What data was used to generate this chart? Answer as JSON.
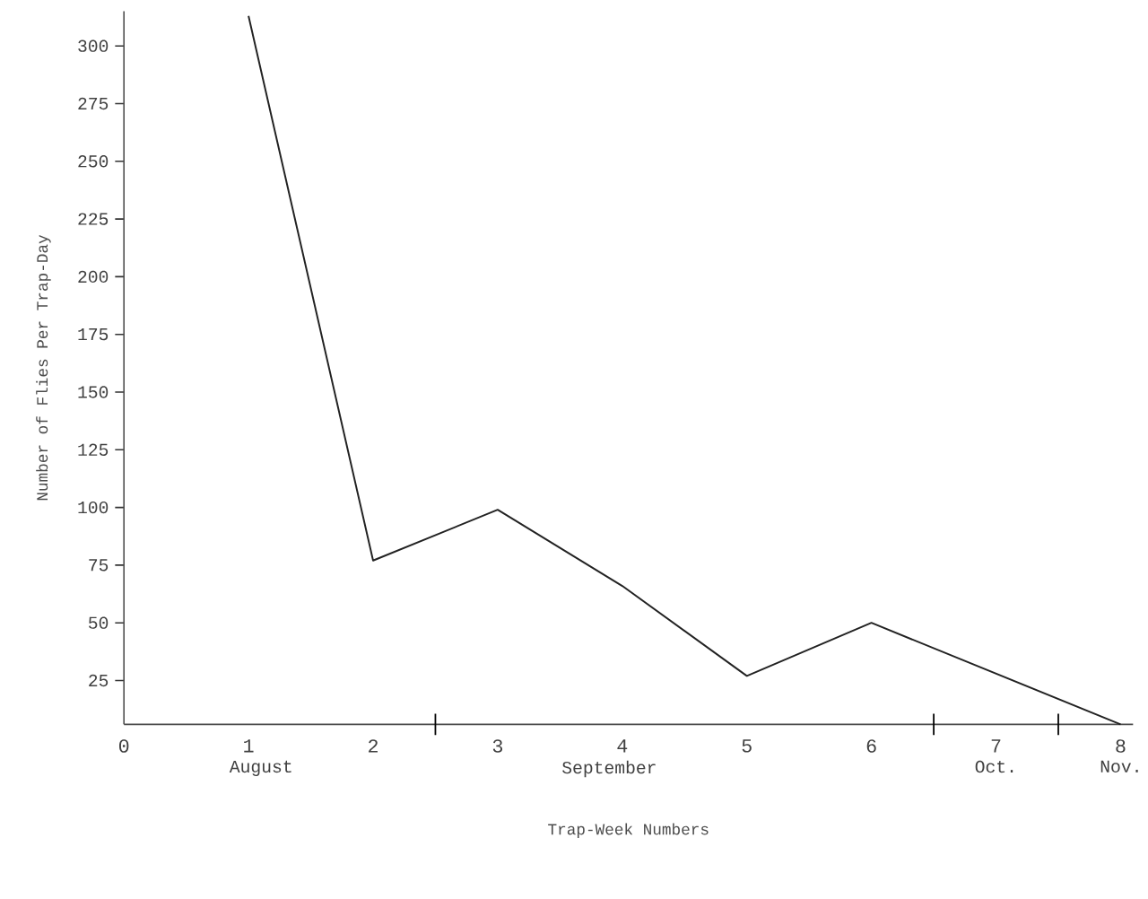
{
  "chart_data": {
    "type": "line",
    "xlabel": "Trap-Week Numbers",
    "ylabel": "Number of Flies Per Trap-Day",
    "x": [
      1,
      2,
      3,
      4,
      5,
      6,
      8
    ],
    "values": [
      313,
      77,
      99,
      66,
      27,
      50,
      6
    ],
    "color": "#222222",
    "line_style": "solid",
    "marker": "none",
    "grid": false,
    "xlim": [
      0,
      8.1
    ],
    "ylim": [
      6,
      315
    ],
    "xticks": [
      0,
      1,
      2,
      {
        "value": 2.5,
        "label": null
      },
      3,
      4,
      5,
      6,
      {
        "value": 6.5,
        "label": null
      },
      7,
      {
        "value": 7.5,
        "label": null
      },
      8
    ],
    "yticks": [
      25,
      50,
      75,
      100,
      125,
      150,
      175,
      200,
      225,
      250,
      275,
      300
    ],
    "annotations": [
      "August",
      "September",
      "Oct.",
      "Nov."
    ]
  }
}
